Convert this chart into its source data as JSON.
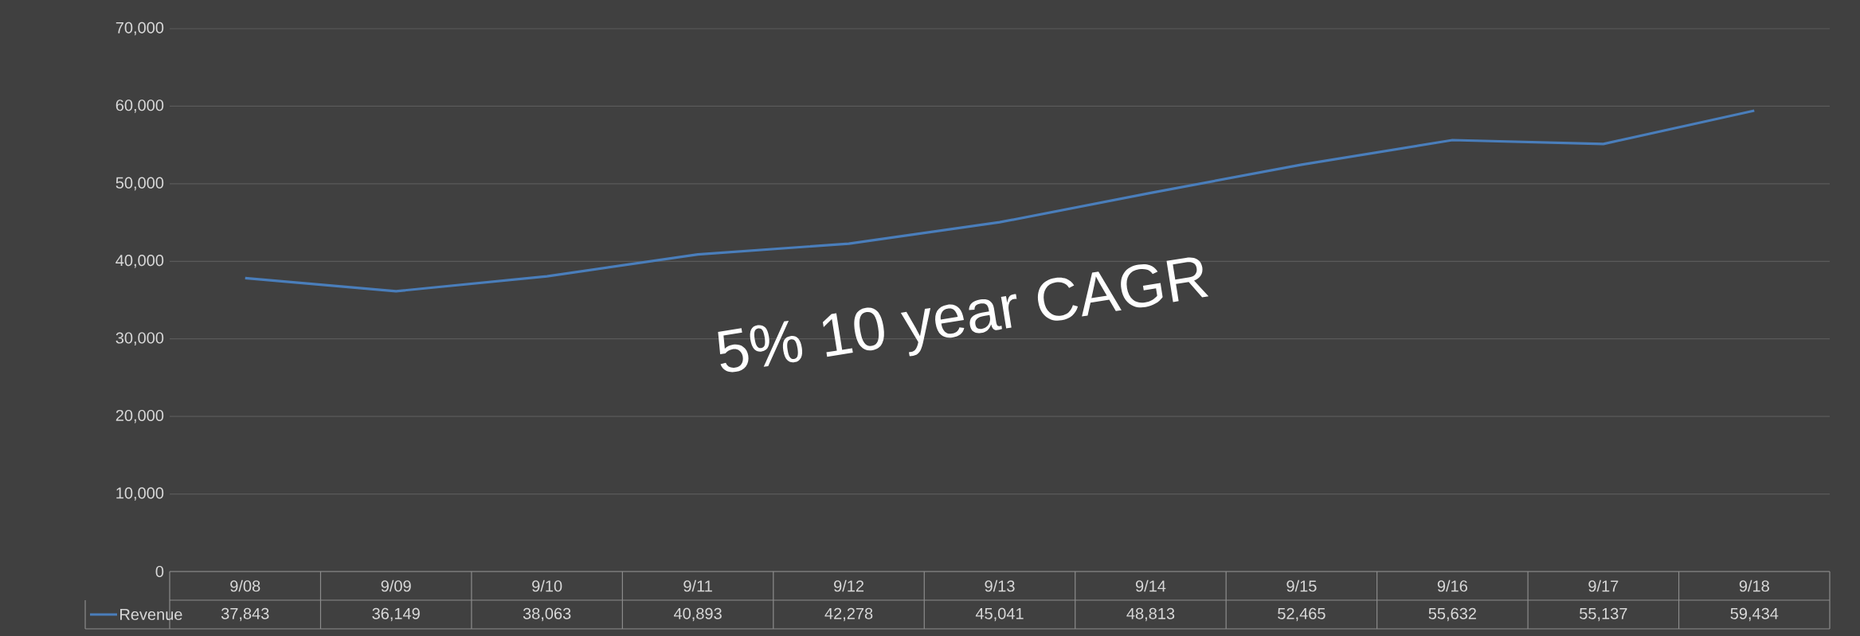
{
  "chart_data": {
    "type": "line",
    "categories": [
      "9/08",
      "9/09",
      "9/10",
      "9/11",
      "9/12",
      "9/13",
      "9/14",
      "9/15",
      "9/16",
      "9/17",
      "9/18"
    ],
    "series": [
      {
        "name": "Revenue",
        "color": "#4a7ebb",
        "values": [
          37843,
          36149,
          38063,
          40893,
          42278,
          45041,
          48813,
          52465,
          55632,
          55137,
          59434
        ],
        "value_labels": [
          "37,843",
          "36,149",
          "38,063",
          "40,893",
          "42,278",
          "45,041",
          "48,813",
          "52,465",
          "55,632",
          "55,137",
          "59,434"
        ]
      }
    ],
    "ylim": [
      0,
      70000
    ],
    "yticks": [
      0,
      {
        "value": 10000,
        "label": "10,000"
      },
      {
        "value": 20000,
        "label": "20,000"
      },
      {
        "value": 30000,
        "label": "30,000"
      },
      {
        "value": 40000,
        "label": "40,000"
      },
      {
        "value": 50000,
        "label": "50,000"
      },
      {
        "value": 60000,
        "label": "60,000"
      },
      {
        "value": 70000,
        "label": "70,000"
      }
    ],
    "grid": true,
    "legend": "bottom",
    "line_style": "solid",
    "annotations": [
      "5% 10 year CAGR"
    ]
  }
}
